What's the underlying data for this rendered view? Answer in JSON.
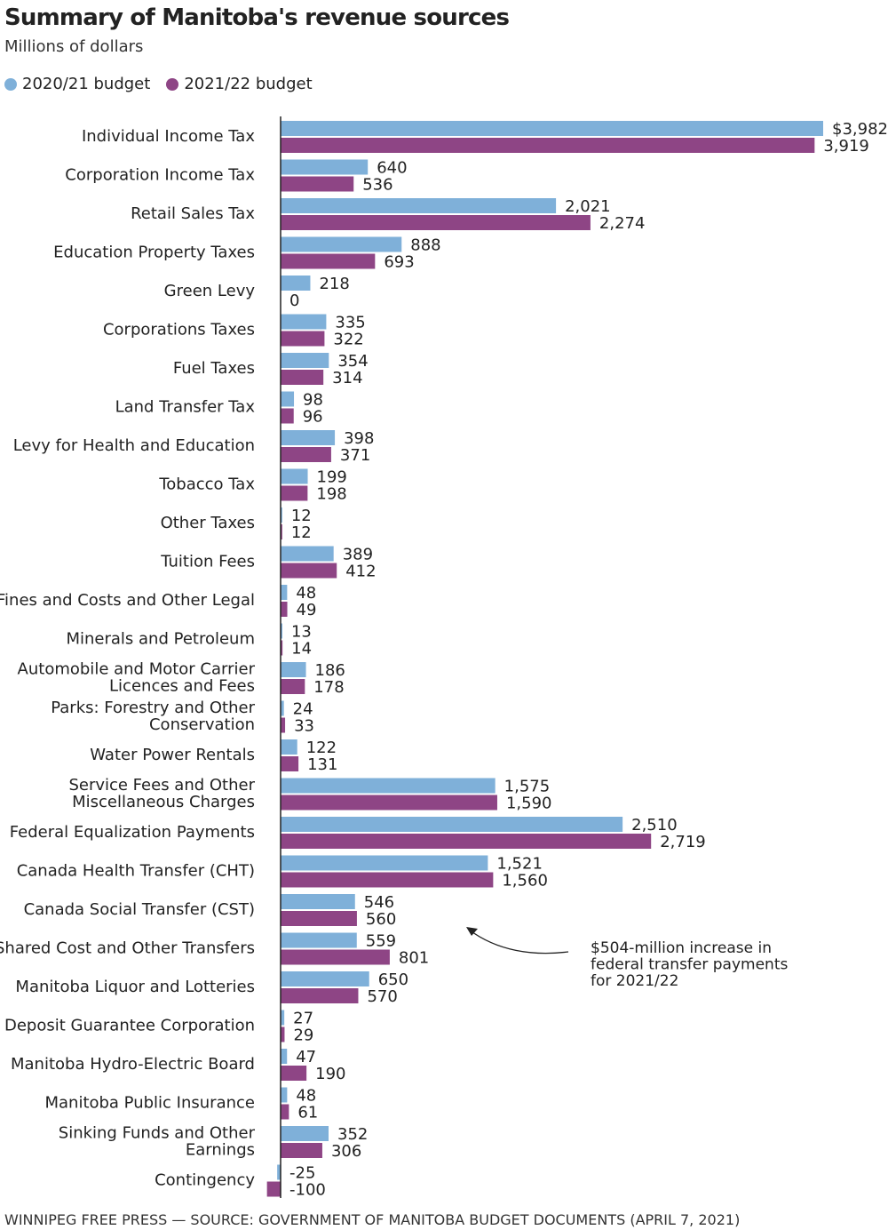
{
  "chart_data": {
    "type": "bar",
    "orientation": "horizontal",
    "title": "Summary of Manitoba's revenue sources",
    "subtitle": "Millions of dollars",
    "source": "WINNIPEG FREE PRESS — SOURCE: GOVERNMENT OF MANITOBA BUDGET DOCUMENTS (APRIL 7, 2021)",
    "legend_position": "top-left",
    "grid": false,
    "categories": [
      [
        "Individual Income Tax"
      ],
      [
        "Corporation Income Tax"
      ],
      [
        "Retail Sales Tax"
      ],
      [
        "Education Property Taxes"
      ],
      [
        "Green Levy"
      ],
      [
        "Corporations Taxes"
      ],
      [
        "Fuel Taxes"
      ],
      [
        "Land Transfer Tax"
      ],
      [
        "Levy for Health and Education"
      ],
      [
        "Tobacco Tax"
      ],
      [
        "Other Taxes"
      ],
      [
        "Tuition Fees"
      ],
      [
        "Fines and Costs and Other Legal"
      ],
      [
        "Minerals and Petroleum"
      ],
      [
        "Automobile and Motor Carrier",
        "Licences and Fees"
      ],
      [
        "Parks: Forestry and Other",
        "Conservation"
      ],
      [
        "Water Power Rentals"
      ],
      [
        "Service Fees and Other",
        "Miscellaneous Charges"
      ],
      [
        "Federal Equalization Payments"
      ],
      [
        "Canada Health Transfer (CHT)"
      ],
      [
        "Canada Social Transfer (CST)"
      ],
      [
        "Shared Cost and Other Transfers"
      ],
      [
        "Manitoba Liquor and Lotteries"
      ],
      [
        "Deposit Guarantee Corporation"
      ],
      [
        "Manitoba Hydro-Electric Board"
      ],
      [
        "Manitoba Public Insurance"
      ],
      [
        "Sinking Funds and Other",
        "Earnings"
      ],
      [
        "Contingency"
      ]
    ],
    "series": [
      {
        "name": "2020/21 budget",
        "color": "#7fb0d9",
        "values": [
          3982,
          640,
          2021,
          888,
          218,
          335,
          354,
          98,
          398,
          199,
          12,
          389,
          48,
          13,
          186,
          24,
          122,
          1575,
          2510,
          1521,
          546,
          559,
          650,
          27,
          47,
          48,
          352,
          -25
        ],
        "labels": [
          "$3,982",
          "640",
          "2,021",
          "888",
          "218",
          "335",
          "354",
          "98",
          "398",
          "199",
          "12",
          "389",
          "48",
          "13",
          "186",
          "24",
          "122",
          "1,575",
          "2,510",
          "1,521",
          "546",
          "559",
          "650",
          "27",
          "47",
          "48",
          "352",
          "-25"
        ]
      },
      {
        "name": "2021/22 budget",
        "color": "#8e4585",
        "values": [
          3919,
          536,
          2274,
          693,
          0,
          322,
          314,
          96,
          371,
          198,
          12,
          412,
          49,
          14,
          178,
          33,
          131,
          1590,
          2719,
          1560,
          560,
          801,
          570,
          29,
          190,
          61,
          306,
          -100
        ],
        "labels": [
          "3,919",
          "536",
          "2,274",
          "693",
          "0",
          "322",
          "314",
          "96",
          "371",
          "198",
          "12",
          "412",
          "49",
          "14",
          "178",
          "33",
          "131",
          "1,590",
          "2,719",
          "1,560",
          "560",
          "801",
          "570",
          "29",
          "190",
          "61",
          "306",
          "-100"
        ]
      }
    ],
    "annotation": {
      "lines": [
        "$504-million increase in",
        "federal transfer payments",
        "for 2021/22"
      ],
      "target_category": "Canada Social Transfer (CST)"
    },
    "xlim": [
      -100,
      3982
    ]
  }
}
